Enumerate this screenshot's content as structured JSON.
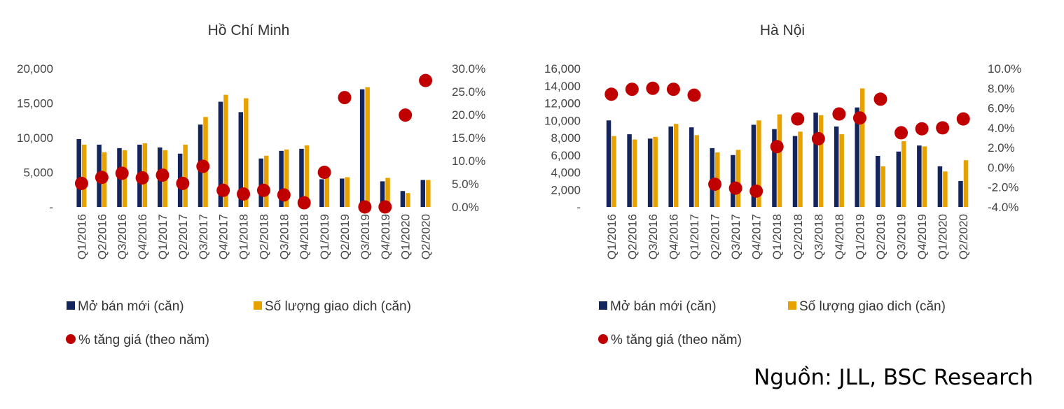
{
  "colors": {
    "new_supply": "#14245C",
    "transactions": "#E8A200",
    "price_growth": "#C00000"
  },
  "source": "Nguồn: JLL, BSC Research",
  "chart_data": [
    {
      "type": "bar",
      "title": "Hồ Chí Minh",
      "categories": [
        "Q1/2016",
        "Q2/2016",
        "Q3/2016",
        "Q4/2016",
        "Q1/2017",
        "Q2/2017",
        "Q3/2017",
        "Q4/2017",
        "Q1/2018",
        "Q2/2018",
        "Q3/2018",
        "Q4/2018",
        "Q1/2019",
        "Q2/2019",
        "Q3/2019",
        "Q4/2019",
        "Q1/2020",
        "Q2/2020"
      ],
      "ylim": [
        0,
        20000
      ],
      "y_ticks": [
        "-",
        "5,000",
        "10,000",
        "15,000",
        "20,000"
      ],
      "y2lim": [
        0,
        30
      ],
      "y2_ticks": [
        "0.0%",
        "5.0%",
        "10.0%",
        "15.0%",
        "20.0%",
        "25.0%",
        "30.0%"
      ],
      "series": [
        {
          "name": "Mở bán mới (căn)",
          "kind": "bar",
          "color": "#14245C",
          "values": [
            9800,
            9000,
            8500,
            9000,
            8600,
            7700,
            11900,
            15200,
            13700,
            7000,
            8100,
            8400,
            4000,
            4100,
            17000,
            3700,
            2300,
            3900
          ]
        },
        {
          "name": "Số lượng giao dich (căn)",
          "kind": "bar",
          "color": "#E8A200",
          "values": [
            9000,
            7900,
            8200,
            9200,
            8200,
            9000,
            13000,
            16200,
            15700,
            7400,
            8300,
            8900,
            4300,
            4300,
            17300,
            4200,
            2000,
            3900
          ]
        },
        {
          "name": "% tăng giá (theo năm)",
          "kind": "scatter",
          "axis": "right",
          "color": "#C00000",
          "values": [
            5.1,
            6.4,
            7.3,
            6.3,
            6.9,
            5.1,
            8.8,
            3.6,
            2.8,
            3.6,
            2.6,
            0.9,
            7.5,
            23.7,
            0.0,
            0.0,
            19.9,
            27.4
          ]
        }
      ]
    },
    {
      "type": "bar",
      "title": "Hà Nội",
      "categories": [
        "Q1/2016",
        "Q2/2016",
        "Q3/2016",
        "Q4/2016",
        "Q1/2017",
        "Q2/2017",
        "Q3/2017",
        "Q4/2017",
        "Q1/2018",
        "Q2/2018",
        "Q3/2018",
        "Q4/2018",
        "Q1/2019",
        "Q2/2019",
        "Q3/2019",
        "Q4/2019",
        "Q1/2020",
        "Q2/2020"
      ],
      "ylim": [
        0,
        16000
      ],
      "y_ticks": [
        "-",
        "2,000",
        "4,000",
        "6,000",
        "8,000",
        "10,000",
        "12,000",
        "14,000",
        "16,000"
      ],
      "y2lim": [
        -4,
        10
      ],
      "y2_ticks": [
        "-4.0%",
        "-2.0%",
        "0.0%",
        "2.0%",
        "4.0%",
        "6.0%",
        "8.0%",
        "10.0%"
      ],
      "series": [
        {
          "name": "Mở bán mới (căn)",
          "kind": "bar",
          "color": "#14245C",
          "values": [
            10000,
            8400,
            7900,
            9300,
            9200,
            6800,
            6000,
            9500,
            9000,
            8200,
            10900,
            9300,
            11500,
            5900,
            6400,
            7100,
            4700,
            3000
          ]
        },
        {
          "name": "Số lượng giao dich (căn)",
          "kind": "bar",
          "color": "#E8A200",
          "values": [
            8200,
            7800,
            8100,
            9600,
            8300,
            6300,
            6600,
            10000,
            10700,
            8700,
            10600,
            8400,
            13700,
            4700,
            7600,
            7000,
            4100,
            5400
          ]
        },
        {
          "name": "% tăng giá (theo năm)",
          "kind": "scatter",
          "axis": "right",
          "color": "#C00000",
          "values": [
            7.4,
            7.9,
            8.0,
            7.9,
            7.3,
            -1.7,
            -2.1,
            -2.4,
            2.1,
            4.9,
            2.9,
            5.4,
            5.0,
            6.9,
            3.5,
            3.9,
            4.0,
            4.9
          ]
        }
      ]
    }
  ]
}
